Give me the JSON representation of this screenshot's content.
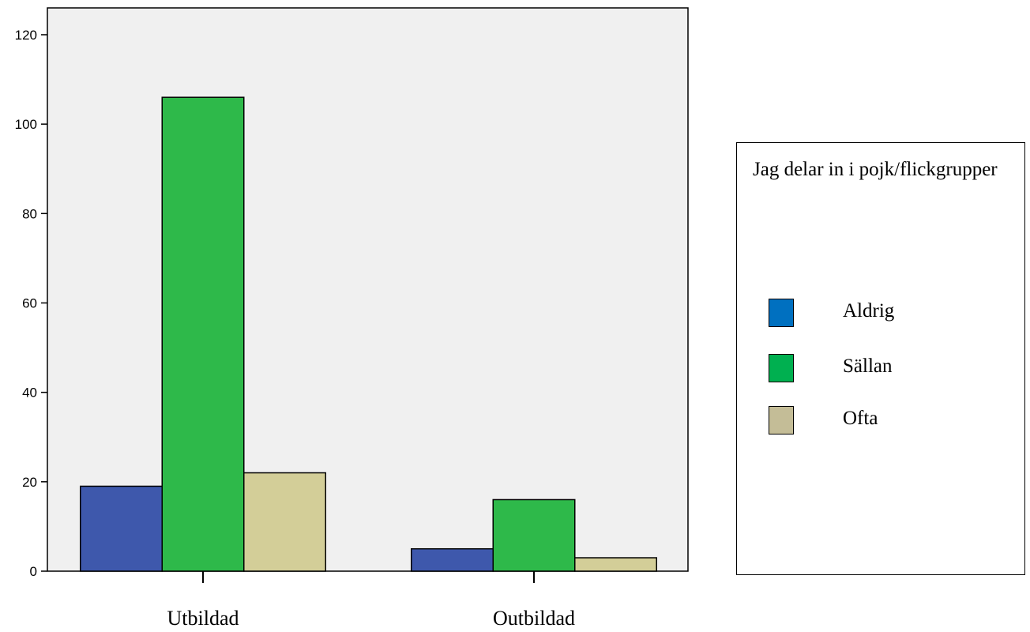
{
  "chart_data": {
    "type": "bar",
    "categories": [
      "Utbildad",
      "Outbildad"
    ],
    "series": [
      {
        "name": "Aldrig",
        "values": [
          19,
          5
        ]
      },
      {
        "name": "Sällan",
        "values": [
          106,
          16
        ]
      },
      {
        "name": "Ofta",
        "values": [
          22,
          3
        ]
      }
    ],
    "title": "",
    "xlabel": "",
    "ylabel": "",
    "ylim": [
      0,
      126
    ],
    "yticks": [
      0,
      20,
      40,
      60,
      80,
      100,
      120
    ],
    "grid": false,
    "legend": {
      "title": "Jag delar in i pojk/flickgrupper",
      "placement": "right",
      "entries": [
        "Aldrig",
        "Sällan",
        "Ofta"
      ]
    }
  },
  "colors": {
    "plot_background": "#f0f0f0",
    "series_bars": [
      "#3e58ac",
      "#2eb94a",
      "#d3ce98"
    ],
    "legend_swatches": [
      "#0070c0",
      "#00b050",
      "#c4bd97"
    ]
  }
}
